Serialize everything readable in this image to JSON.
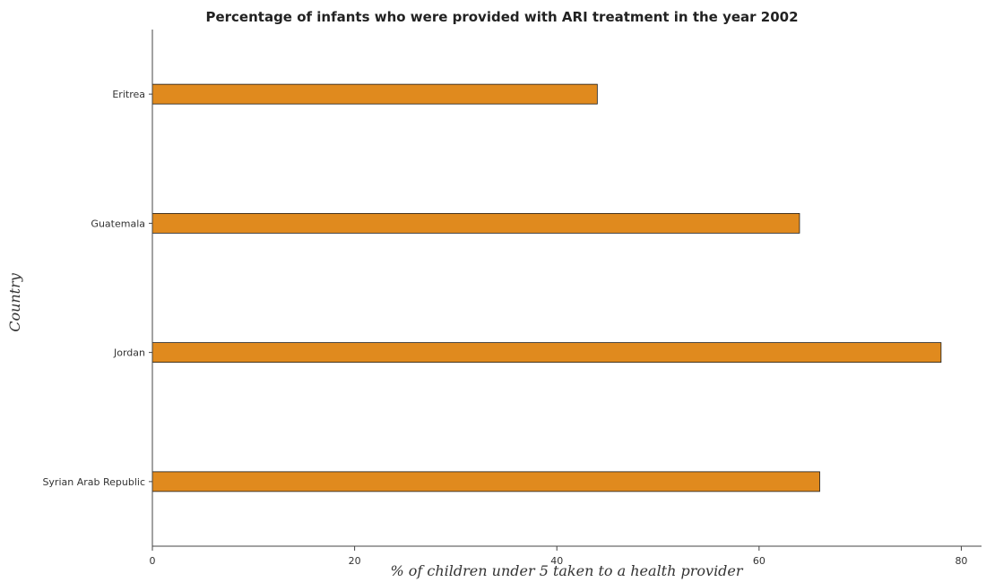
{
  "chart_data": {
    "type": "bar",
    "orientation": "horizontal",
    "title": "Percentage of infants who were provided with ARI treatment in the year 2002",
    "xlabel": "% of children under 5 taken to a health provider",
    "ylabel": "Country",
    "categories": [
      "Eritrea",
      "Guatemala",
      "Jordan",
      "Syrian Arab Republic"
    ],
    "values": [
      44,
      64,
      78,
      66
    ],
    "xlim": [
      0,
      82
    ],
    "xticks": [
      0,
      20,
      40,
      60,
      80
    ],
    "grid": false,
    "bar_color": "#e08a1e"
  }
}
